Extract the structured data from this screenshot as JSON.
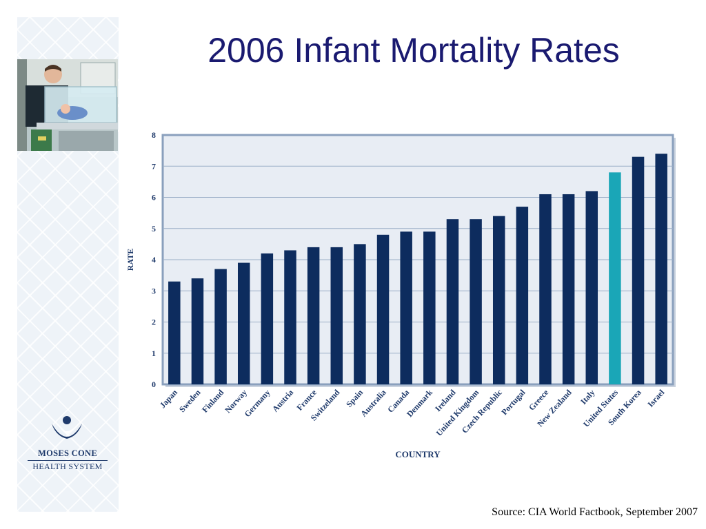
{
  "slide": {
    "title": "2006 Infant Mortality Rates",
    "source": "Source: CIA World Factbook, September 2007"
  },
  "logo": {
    "line1": "MOSES CONE",
    "line2": "HEALTH SYSTEM"
  },
  "colors": {
    "bar": "#0d2c5e",
    "highlight": "#1aa6b7",
    "title": "#1a1a70",
    "plot_background": "#e8edf4",
    "frame": "#8aa0bd"
  },
  "chart_data": {
    "type": "bar",
    "title": "",
    "xlabel": "COUNTRY",
    "ylabel": "RATE",
    "ylim": [
      0,
      8
    ],
    "yticks": [
      0,
      1,
      2,
      3,
      4,
      5,
      6,
      7,
      8
    ],
    "grid": true,
    "highlight_category": "United States",
    "categories": [
      "Japan",
      "Sweden",
      "Finland",
      "Norway",
      "Germany",
      "Austria",
      "France",
      "Switzeland",
      "Spain",
      "Australia",
      "Canada",
      "Denmark",
      "Ireland",
      "United Kingdom",
      "Czech Republic",
      "Portugal",
      "Greece",
      "New Zealand",
      "Italy",
      "United States",
      "South Korea",
      "Israel"
    ],
    "values": [
      3.3,
      3.4,
      3.7,
      3.9,
      4.2,
      4.3,
      4.4,
      4.4,
      4.5,
      4.8,
      4.9,
      4.9,
      5.3,
      5.3,
      5.4,
      5.7,
      6.1,
      6.1,
      6.2,
      6.8,
      7.3,
      7.4
    ]
  }
}
